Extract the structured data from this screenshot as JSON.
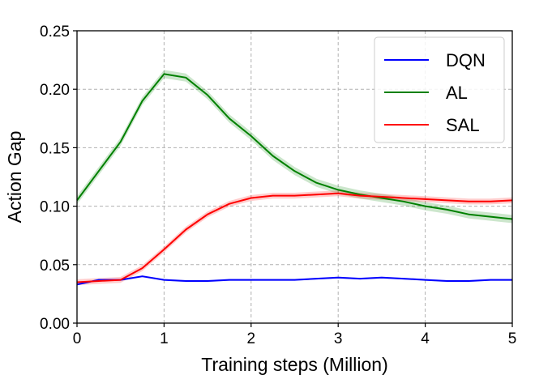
{
  "chart_data": {
    "type": "line",
    "title": "",
    "xlabel": "Training steps (Million)",
    "ylabel": "Action Gap",
    "xlim": [
      0,
      5
    ],
    "ylim": [
      0,
      0.25
    ],
    "x_ticks": [
      0,
      1,
      2,
      3,
      4,
      5
    ],
    "x_tick_labels": [
      "0",
      "1",
      "2",
      "3",
      "4",
      "5"
    ],
    "y_ticks": [
      0,
      0.05,
      0.1,
      0.15,
      0.2,
      0.25
    ],
    "y_tick_labels": [
      "0.00",
      "0.05",
      "0.10",
      "0.15",
      "0.20",
      "0.25"
    ],
    "grid": true,
    "legend_position": "top-right",
    "x": [
      0,
      0.25,
      0.5,
      0.75,
      1,
      1.25,
      1.5,
      1.75,
      2,
      2.25,
      2.5,
      2.75,
      3,
      3.25,
      3.5,
      3.75,
      4,
      4.25,
      4.5,
      4.75,
      5
    ],
    "series": [
      {
        "name": "DQN",
        "color": "#0000ff",
        "values": [
          0.033,
          0.037,
          0.037,
          0.04,
          0.037,
          0.036,
          0.036,
          0.037,
          0.037,
          0.037,
          0.037,
          0.038,
          0.039,
          0.038,
          0.039,
          0.038,
          0.037,
          0.036,
          0.036,
          0.037,
          0.037
        ],
        "band": 0.0008
      },
      {
        "name": "AL",
        "color": "#008000",
        "values": [
          0.105,
          0.13,
          0.155,
          0.19,
          0.213,
          0.21,
          0.195,
          0.175,
          0.16,
          0.143,
          0.13,
          0.12,
          0.114,
          0.11,
          0.107,
          0.104,
          0.1,
          0.097,
          0.093,
          0.091,
          0.089
        ],
        "band": 0.0035
      },
      {
        "name": "SAL",
        "color": "#ff0000",
        "values": [
          0.035,
          0.036,
          0.037,
          0.047,
          0.063,
          0.08,
          0.093,
          0.102,
          0.107,
          0.109,
          0.109,
          0.11,
          0.111,
          0.109,
          0.108,
          0.107,
          0.106,
          0.105,
          0.104,
          0.104,
          0.105
        ],
        "band": 0.0025
      }
    ]
  }
}
